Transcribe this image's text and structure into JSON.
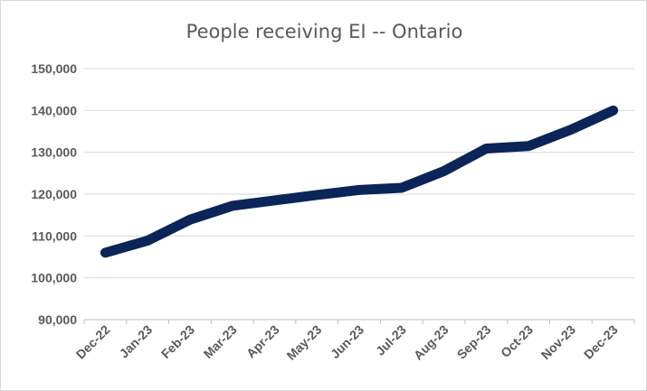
{
  "chart_data": {
    "type": "line",
    "title": "People receiving EI -- Ontario",
    "xlabel": "",
    "ylabel": "",
    "categories": [
      "Dec-22",
      "Jan-23",
      "Feb-23",
      "Mar-23",
      "Apr-23",
      "May-23",
      "Jun-23",
      "Jul-23",
      "Aug-23",
      "Sep-23",
      "Oct-23",
      "Nov-23",
      "Dec-23"
    ],
    "series": [
      {
        "values": [
          106000,
          108900,
          113900,
          117200,
          118500,
          119800,
          121000,
          121500,
          125500,
          130900,
          131500,
          135400,
          140000
        ],
        "color": "#0b2559"
      }
    ],
    "ylim": [
      90000,
      150000
    ],
    "yticks": [
      90000,
      100000,
      110000,
      120000,
      130000,
      140000,
      150000
    ],
    "ytick_labels": [
      "90,000",
      "100,000",
      "110,000",
      "120,000",
      "130,000",
      "140,000",
      "150,000"
    ],
    "grid": true,
    "legend": "none"
  }
}
